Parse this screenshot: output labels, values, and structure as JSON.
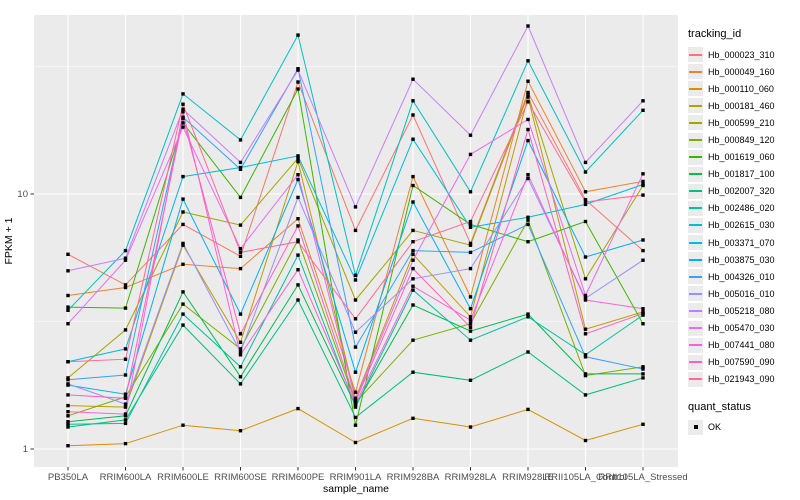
{
  "figure_title": "",
  "panel": {
    "bg_color": "#ebebeb",
    "grid_color": "#ffffff",
    "tick_color": "#333333",
    "tick_label_color": "#4d4d4d",
    "axis_title_color": "#000000",
    "point_color": "#000000"
  },
  "legend": {
    "tracking_title": "tracking_id",
    "quant_title": "quant_status",
    "quant_label": "OK",
    "key_bg": "#ebebeb"
  },
  "chart_data": {
    "type": "line",
    "title": "",
    "xlabel": "sample_name",
    "ylabel": "FPKM + 1",
    "yscale": "log10",
    "ylim": [
      0.85,
      52
    ],
    "y_major_ticks": [
      1,
      10
    ],
    "y_minor_ticks": [
      3.1623,
      31.623
    ],
    "grid": true,
    "legend_position": "right",
    "marker": "black-square",
    "categories": [
      "PB350LA",
      "RRIM600LA",
      "RRIM600LE",
      "RRIM600SE",
      "RRIM600PE",
      "RRIM901LA",
      "RRIM928BA",
      "RRIM928LA",
      "RRIM928LE",
      "RRII105LA_Control",
      "RRII105LA_Stressed"
    ],
    "series": [
      {
        "name": "Hb_000023_310",
        "color": "#F8766D",
        "values": [
          5.8,
          4.4,
          7.6,
          5.7,
          27.5,
          7.2,
          20.4,
          6.4,
          25.0,
          9.5,
          6.0
        ]
      },
      {
        "name": "Hb_000049_160",
        "color": "#EA8331",
        "values": [
          4.0,
          4.3,
          5.3,
          5.1,
          8.0,
          1.67,
          11.7,
          3.95,
          27.7,
          10.2,
          11.2
        ]
      },
      {
        "name": "Hb_000110_060",
        "color": "#D89000",
        "values": [
          1.03,
          1.05,
          1.24,
          1.18,
          1.44,
          1.06,
          1.32,
          1.22,
          1.43,
          1.08,
          1.25
        ]
      },
      {
        "name": "Hb_000181_460",
        "color": "#C09B00",
        "values": [
          1.48,
          1.46,
          6.3,
          2.62,
          13.4,
          1.58,
          5.8,
          3.3,
          24.0,
          2.95,
          3.45
        ]
      },
      {
        "name": "Hb_000599_210",
        "color": "#A3A500",
        "values": [
          1.9,
          2.93,
          8.5,
          7.55,
          13.8,
          3.84,
          7.2,
          6.3,
          24.5,
          4.65,
          10.8
        ]
      },
      {
        "name": "Hb_000849_120",
        "color": "#7CAE00",
        "values": [
          1.35,
          1.6,
          3.7,
          2.47,
          6.6,
          1.52,
          2.67,
          3.1,
          7.9,
          1.94,
          2.1
        ]
      },
      {
        "name": "Hb_001619_060",
        "color": "#39B600",
        "values": [
          3.6,
          3.57,
          19.0,
          9.7,
          25.8,
          1.24,
          10.8,
          7.6,
          6.5,
          7.8,
          3.1
        ]
      },
      {
        "name": "Hb_001817_100",
        "color": "#00BB4E",
        "values": [
          1.28,
          1.35,
          4.13,
          1.92,
          4.4,
          1.48,
          3.67,
          2.9,
          3.38,
          1.97,
          1.97
        ]
      },
      {
        "name": "Hb_002007_320",
        "color": "#00BF7D",
        "values": [
          1.22,
          1.3,
          3.06,
          1.8,
          3.84,
          1.33,
          2.0,
          1.86,
          2.4,
          1.63,
          1.9
        ]
      },
      {
        "name": "Hb_002486_020",
        "color": "#00C1A3",
        "values": [
          1.25,
          1.26,
          3.38,
          2.1,
          5.76,
          1.46,
          4.2,
          2.67,
          3.3,
          2.34,
          3.35
        ]
      },
      {
        "name": "Hb_002615_030",
        "color": "#00BFC4",
        "values": [
          3.5,
          6.0,
          24.7,
          16.3,
          42.0,
          4.8,
          23.2,
          10.2,
          33.3,
          12.2,
          21.3
        ]
      },
      {
        "name": "Hb_003371_070",
        "color": "#00BAE0",
        "values": [
          2.2,
          2.47,
          11.7,
          12.7,
          14.1,
          4.6,
          16.4,
          7.4,
          8.1,
          9.1,
          10.9
        ]
      },
      {
        "name": "Hb_003875_030",
        "color": "#00B0F6",
        "values": [
          1.78,
          1.64,
          9.55,
          3.38,
          11.4,
          2.0,
          9.3,
          3.55,
          16.2,
          5.66,
          6.6
        ]
      },
      {
        "name": "Hb_004326_010",
        "color": "#35A2FF",
        "values": [
          1.87,
          1.95,
          20.0,
          12.5,
          31.0,
          2.51,
          6.0,
          5.9,
          7.6,
          2.3,
          2.06
        ]
      },
      {
        "name": "Hb_005016_010",
        "color": "#9590FF",
        "values": [
          1.8,
          1.5,
          6.4,
          2.4,
          9.7,
          2.87,
          4.65,
          5.1,
          11.5,
          3.9,
          5.5
        ]
      },
      {
        "name": "Hb_005218_080",
        "color": "#C77CFF",
        "values": [
          5.0,
          5.6,
          21.5,
          13.3,
          30.6,
          8.9,
          28.2,
          17.0,
          45.6,
          13.3,
          23.2
        ]
      },
      {
        "name": "Hb_005470_030",
        "color": "#E76BF3",
        "values": [
          3.1,
          5.5,
          18.3,
          6.1,
          11.9,
          1.56,
          5.5,
          14.3,
          19.6,
          4.0,
          12.0
        ]
      },
      {
        "name": "Hb_007441_080",
        "color": "#FA62DB",
        "values": [
          1.4,
          1.37,
          21.0,
          2.34,
          5.05,
          1.5,
          4.35,
          3.2,
          11.9,
          3.84,
          3.55
        ]
      },
      {
        "name": "Hb_007590_090",
        "color": "#FF62BC",
        "values": [
          1.63,
          1.58,
          19.8,
          2.83,
          7.5,
          1.54,
          5.1,
          3.0,
          17.9,
          2.83,
          3.4
        ]
      },
      {
        "name": "Hb_021943_090",
        "color": "#FF6A98",
        "values": [
          2.2,
          2.25,
          22.5,
          5.9,
          6.5,
          3.24,
          6.5,
          7.8,
          23.0,
          9.3,
          9.9
        ]
      }
    ]
  }
}
